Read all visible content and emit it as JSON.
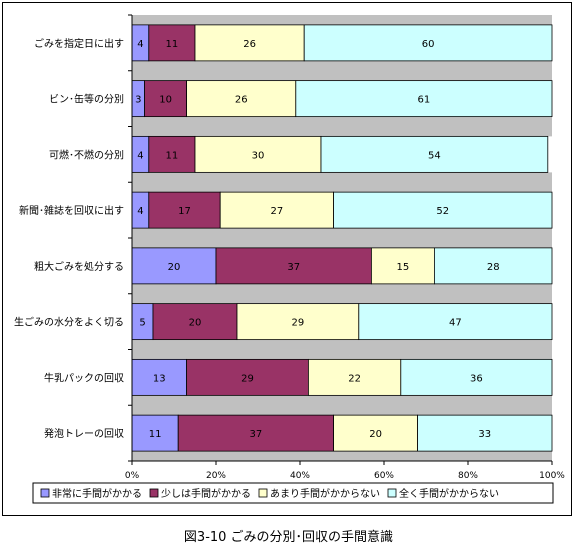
{
  "chart_data": {
    "type": "bar",
    "orientation": "horizontal",
    "stacked": true,
    "title": "図3-10  ごみの分別･回収の手間意識",
    "categories": [
      "ごみを指定日に出す",
      "ビン･缶等の分別",
      "可燃･不燃の分別",
      "新聞･雑誌を回収に出す",
      "粗大ごみを処分する",
      "生ごみの水分をよく切る",
      "牛乳パックの回収",
      "発泡トレーの回収"
    ],
    "series": [
      {
        "name": "非常に手間がかかる",
        "color": "#9999ff",
        "values": [
          4,
          3,
          4,
          4,
          20,
          5,
          13,
          11
        ]
      },
      {
        "name": "少しは手間がかかる",
        "color": "#993366",
        "values": [
          11,
          10,
          11,
          17,
          37,
          20,
          29,
          37
        ]
      },
      {
        "name": "あまり手間がかからない",
        "color": "#ffffcc",
        "values": [
          26,
          26,
          30,
          27,
          15,
          29,
          22,
          20
        ]
      },
      {
        "name": "全く手間がかからない",
        "color": "#ccffff",
        "values": [
          60,
          61,
          54,
          52,
          28,
          47,
          36,
          33
        ]
      }
    ],
    "xticks": [
      "0%",
      "20%",
      "40%",
      "60%",
      "80%",
      "100%"
    ],
    "xlim": [
      0,
      100
    ],
    "band_color": "#c0c0c0",
    "legend_position": "bottom",
    "grid": false
  }
}
